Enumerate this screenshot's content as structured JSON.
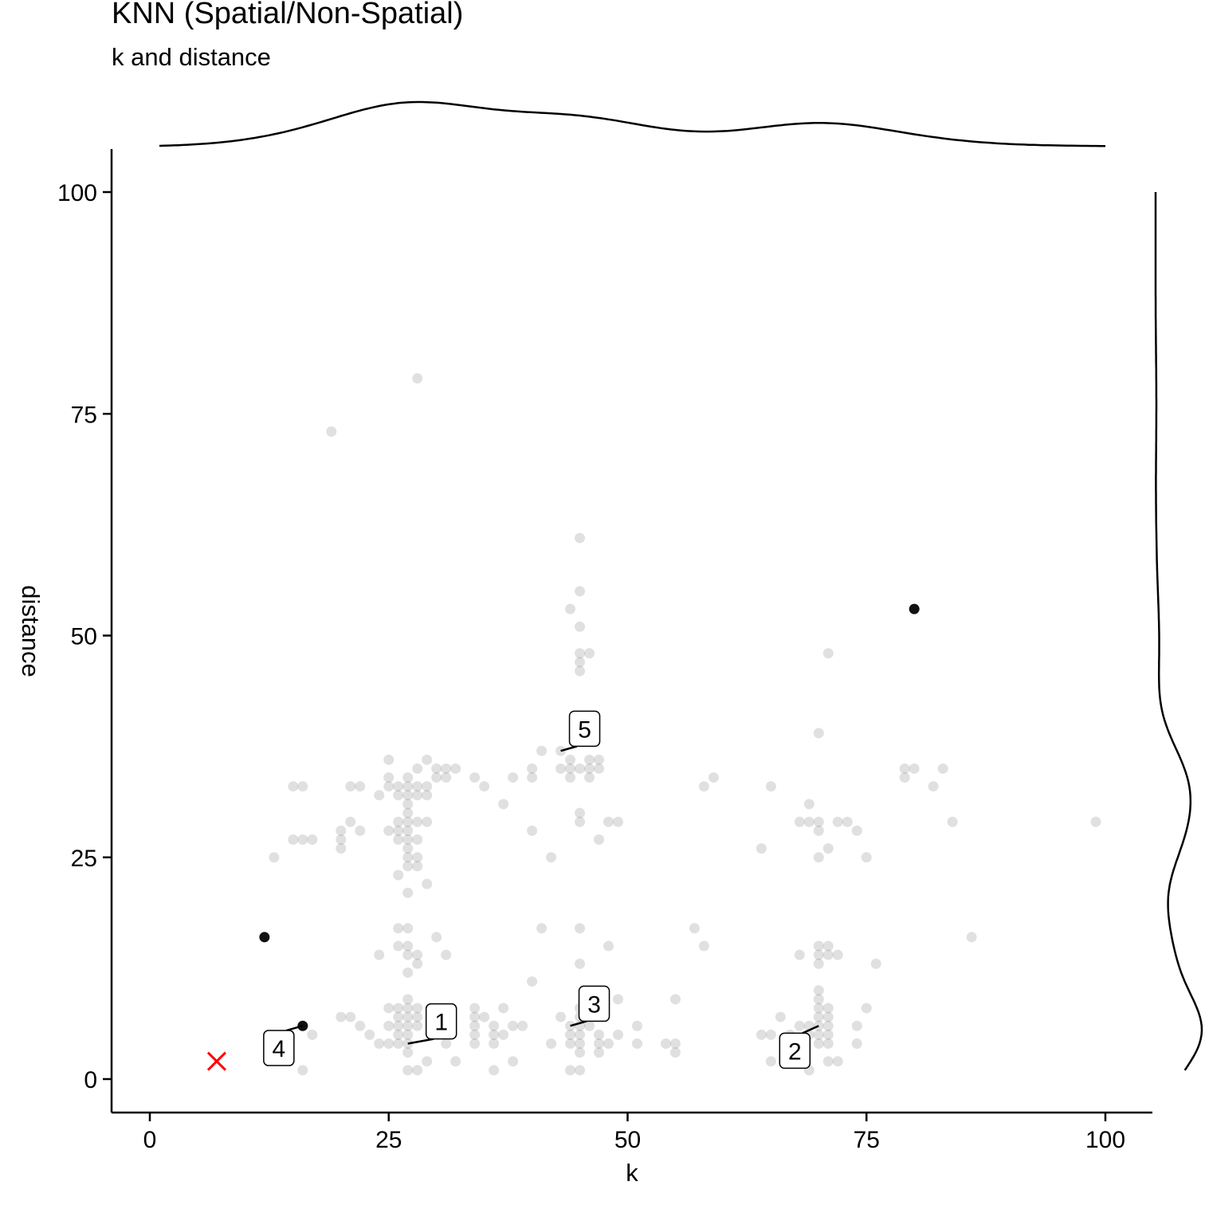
{
  "chart_data": {
    "type": "scatter",
    "title": "KNN (Spatial/Non-Spatial)",
    "subtitle": "k and distance",
    "xlabel": "k",
    "ylabel": "distance",
    "xlim": [
      -4,
      105
    ],
    "ylim": [
      -4,
      105
    ],
    "x_ticks": [
      0,
      25,
      50,
      75,
      100
    ],
    "y_ticks": [
      0,
      25,
      50,
      75,
      100
    ],
    "x_tick_labels": [
      "0",
      "25",
      "50",
      "75",
      "100"
    ],
    "y_tick_labels": [
      "0",
      "25",
      "50",
      "75",
      "100"
    ],
    "grid": false,
    "marginal_density": {
      "top": "x",
      "right": "y"
    },
    "point_color": "#000000",
    "point_opacity": 0.12,
    "marker_color": "#ff0000",
    "points": [
      [
        28,
        79
      ],
      [
        19,
        73
      ],
      [
        45,
        61
      ],
      [
        45,
        55
      ],
      [
        44,
        53
      ],
      [
        45,
        51
      ],
      [
        45,
        48
      ],
      [
        46,
        48
      ],
      [
        45,
        47
      ],
      [
        45,
        46
      ],
      [
        71,
        48
      ],
      [
        41,
        37
      ],
      [
        43,
        37
      ],
      [
        44,
        36
      ],
      [
        44,
        35
      ],
      [
        44,
        34
      ],
      [
        45,
        35
      ],
      [
        46,
        36
      ],
      [
        47,
        36
      ],
      [
        46,
        35
      ],
      [
        47,
        35
      ],
      [
        46,
        34
      ],
      [
        40,
        35
      ],
      [
        40,
        34
      ],
      [
        43,
        35
      ],
      [
        45,
        30
      ],
      [
        45,
        29
      ],
      [
        48,
        29
      ],
      [
        47,
        27
      ],
      [
        42,
        25
      ],
      [
        40,
        28
      ],
      [
        37,
        31
      ],
      [
        38,
        34
      ],
      [
        35,
        33
      ],
      [
        34,
        34
      ],
      [
        31,
        35
      ],
      [
        32,
        35
      ],
      [
        31,
        34
      ],
      [
        30,
        35
      ],
      [
        30,
        34
      ],
      [
        29,
        36
      ],
      [
        28,
        35
      ],
      [
        28,
        33
      ],
      [
        29,
        33
      ],
      [
        29,
        32
      ],
      [
        28,
        32
      ],
      [
        27,
        34
      ],
      [
        27,
        33
      ],
      [
        27,
        32
      ],
      [
        27,
        31
      ],
      [
        27,
        30
      ],
      [
        27,
        29
      ],
      [
        27,
        28
      ],
      [
        27,
        27
      ],
      [
        27,
        26
      ],
      [
        27,
        25
      ],
      [
        27,
        24
      ],
      [
        26,
        33
      ],
      [
        26,
        32
      ],
      [
        26,
        29
      ],
      [
        26,
        28
      ],
      [
        26,
        27
      ],
      [
        26,
        23
      ],
      [
        25,
        36
      ],
      [
        25,
        34
      ],
      [
        25,
        33
      ],
      [
        25,
        28
      ],
      [
        24,
        32
      ],
      [
        29,
        29
      ],
      [
        28,
        29
      ],
      [
        28,
        27
      ],
      [
        28,
        25
      ],
      [
        28,
        24
      ],
      [
        29,
        22
      ],
      [
        27,
        21
      ],
      [
        22,
        33
      ],
      [
        21,
        33
      ],
      [
        21,
        29
      ],
      [
        22,
        28
      ],
      [
        20,
        28
      ],
      [
        20,
        27
      ],
      [
        20,
        26
      ],
      [
        16,
        33
      ],
      [
        15,
        33
      ],
      [
        15,
        27
      ],
      [
        16,
        27
      ],
      [
        17,
        27
      ],
      [
        13,
        25
      ],
      [
        70,
        39
      ],
      [
        69,
        31
      ],
      [
        68,
        29
      ],
      [
        69,
        29
      ],
      [
        70,
        29
      ],
      [
        70,
        28
      ],
      [
        70,
        25
      ],
      [
        71,
        26
      ],
      [
        72,
        29
      ],
      [
        73,
        29
      ],
      [
        74,
        28
      ],
      [
        75,
        25
      ],
      [
        65,
        33
      ],
      [
        64,
        26
      ],
      [
        58,
        33
      ],
      [
        59,
        34
      ],
      [
        79,
        35
      ],
      [
        79,
        34
      ],
      [
        80,
        35
      ],
      [
        82,
        33
      ],
      [
        83,
        35
      ],
      [
        84,
        29
      ],
      [
        86,
        16
      ],
      [
        99,
        29
      ],
      [
        49,
        29
      ],
      [
        26,
        17
      ],
      [
        27,
        17
      ],
      [
        26,
        15
      ],
      [
        27,
        15
      ],
      [
        27,
        14
      ],
      [
        27,
        12
      ],
      [
        28,
        14
      ],
      [
        28,
        13
      ],
      [
        24,
        14
      ],
      [
        30,
        16
      ],
      [
        31,
        14
      ],
      [
        41,
        17
      ],
      [
        45,
        17
      ],
      [
        45,
        13
      ],
      [
        48,
        15
      ],
      [
        40,
        11
      ],
      [
        57,
        17
      ],
      [
        58,
        15
      ],
      [
        70,
        15
      ],
      [
        70,
        14
      ],
      [
        70,
        13
      ],
      [
        71,
        15
      ],
      [
        71,
        14
      ],
      [
        72,
        14
      ],
      [
        76,
        13
      ],
      [
        68,
        14
      ],
      [
        27,
        9
      ],
      [
        27,
        8
      ],
      [
        27,
        7
      ],
      [
        27,
        6
      ],
      [
        27,
        5
      ],
      [
        27,
        4
      ],
      [
        27,
        3
      ],
      [
        27,
        1
      ],
      [
        26,
        8
      ],
      [
        26,
        7
      ],
      [
        26,
        6
      ],
      [
        26,
        5
      ],
      [
        26,
        4
      ],
      [
        25,
        8
      ],
      [
        25,
        6
      ],
      [
        25,
        4
      ],
      [
        24,
        4
      ],
      [
        23,
        5
      ],
      [
        21,
        7
      ],
      [
        22,
        6
      ],
      [
        20,
        7
      ],
      [
        17,
        5
      ],
      [
        16,
        6
      ],
      [
        16,
        1
      ],
      [
        28,
        8
      ],
      [
        28,
        7
      ],
      [
        28,
        6
      ],
      [
        28,
        1
      ],
      [
        29,
        2
      ],
      [
        31,
        4
      ],
      [
        32,
        2
      ],
      [
        34,
        8
      ],
      [
        34,
        7
      ],
      [
        34,
        6
      ],
      [
        34,
        5
      ],
      [
        34,
        4
      ],
      [
        35,
        7
      ],
      [
        36,
        6
      ],
      [
        36,
        5
      ],
      [
        36,
        4
      ],
      [
        36,
        1
      ],
      [
        37,
        8
      ],
      [
        37,
        5
      ],
      [
        38,
        6
      ],
      [
        38,
        2
      ],
      [
        39,
        6
      ],
      [
        42,
        4
      ],
      [
        43,
        7
      ],
      [
        44,
        6
      ],
      [
        44,
        5
      ],
      [
        44,
        4
      ],
      [
        44,
        1
      ],
      [
        45,
        8
      ],
      [
        45,
        7
      ],
      [
        45,
        6
      ],
      [
        45,
        5
      ],
      [
        45,
        4
      ],
      [
        45,
        3
      ],
      [
        45,
        1
      ],
      [
        46,
        6
      ],
      [
        47,
        5
      ],
      [
        47,
        4
      ],
      [
        47,
        3
      ],
      [
        48,
        4
      ],
      [
        49,
        9
      ],
      [
        49,
        5
      ],
      [
        51,
        6
      ],
      [
        51,
        4
      ],
      [
        54,
        4
      ],
      [
        55,
        4
      ],
      [
        55,
        3
      ],
      [
        55,
        9
      ],
      [
        64,
        5
      ],
      [
        65,
        5
      ],
      [
        65,
        2
      ],
      [
        66,
        7
      ],
      [
        67,
        5
      ],
      [
        67,
        2
      ],
      [
        68,
        6
      ],
      [
        68,
        4
      ],
      [
        69,
        5
      ],
      [
        69,
        6
      ],
      [
        69,
        1
      ],
      [
        70,
        10
      ],
      [
        70,
        9
      ],
      [
        70,
        8
      ],
      [
        70,
        7
      ],
      [
        70,
        6
      ],
      [
        70,
        5
      ],
      [
        70,
        4
      ],
      [
        71,
        8
      ],
      [
        71,
        7
      ],
      [
        71,
        6
      ],
      [
        71,
        5
      ],
      [
        71,
        4
      ],
      [
        71,
        2
      ],
      [
        72,
        2
      ],
      [
        74,
        6
      ],
      [
        74,
        4
      ],
      [
        75,
        8
      ]
    ],
    "highlighted_points": [
      [
        12,
        16
      ],
      [
        16,
        6
      ],
      [
        80,
        53
      ]
    ],
    "marker_x": [
      7,
      2
    ],
    "labeled_points": [
      {
        "label": "1",
        "x": 27,
        "y": 4,
        "lx": 30.5,
        "ly": 6.5
      },
      {
        "label": "2",
        "x": 70,
        "y": 6,
        "lx": 67.5,
        "ly": 3.2
      },
      {
        "label": "3",
        "x": 44,
        "y": 6,
        "lx": 46.5,
        "ly": 8.5
      },
      {
        "label": "4",
        "x": 16,
        "y": 6,
        "lx": 13.5,
        "ly": 3.5
      },
      {
        "label": "5",
        "x": 43,
        "y": 37,
        "lx": 45.5,
        "ly": 39.5
      }
    ]
  }
}
